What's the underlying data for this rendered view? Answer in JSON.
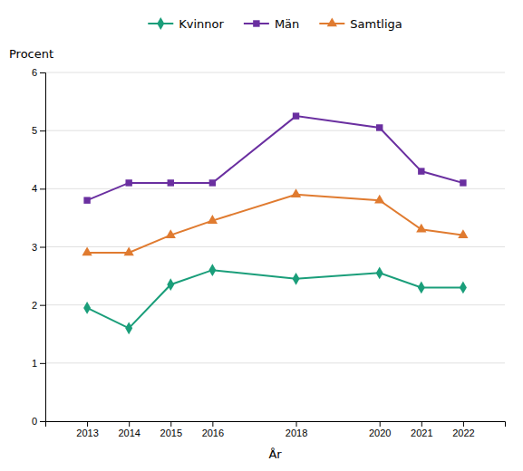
{
  "chart_data": {
    "type": "line",
    "xlabel": "År",
    "ylabel": "Procent",
    "x": [
      2013,
      2014,
      2015,
      2016,
      2018,
      2020,
      2021,
      2022
    ],
    "series": [
      {
        "name": "Kvinnor",
        "color": "#1a9e7a",
        "marker": "diamond",
        "values": [
          1.95,
          1.6,
          2.35,
          2.6,
          2.45,
          2.55,
          2.3,
          2.3
        ]
      },
      {
        "name": "Män",
        "color": "#6a2fa0",
        "marker": "square",
        "values": [
          3.8,
          4.1,
          4.1,
          4.1,
          5.25,
          5.05,
          4.3,
          4.1
        ]
      },
      {
        "name": "Samtliga",
        "color": "#e07b30",
        "marker": "triangle",
        "values": [
          2.9,
          2.9,
          3.2,
          3.45,
          3.9,
          3.8,
          3.3,
          3.2
        ]
      }
    ],
    "xlim": [
      2012,
      2023
    ],
    "xticks": [
      2013,
      2014,
      2015,
      2016,
      2018,
      2020,
      2021,
      2022
    ],
    "ylim": [
      0,
      6
    ],
    "yticks": [
      0,
      1,
      2,
      3,
      4,
      5,
      6
    ],
    "grid": true,
    "legend": "top"
  }
}
